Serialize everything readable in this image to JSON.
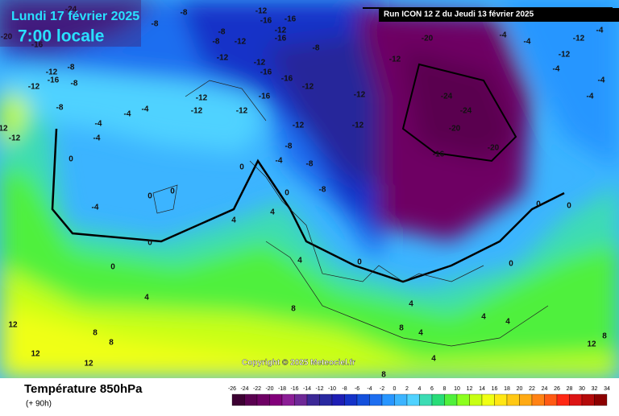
{
  "header": {
    "date": "Lundi 17 février 2025",
    "time": "7:00 locale",
    "run": "Run ICON 12 Z du Jeudi 13 février 2025"
  },
  "copyright": "Copyright © 2025 Meteociel.fr",
  "footer": {
    "title": "Température 850hPa",
    "lead": "(+ 90h)"
  },
  "legend": {
    "ticks": [
      -26,
      -24,
      -22,
      -20,
      -18,
      -16,
      -14,
      -12,
      -10,
      -8,
      -6,
      -4,
      -2,
      0,
      2,
      4,
      6,
      8,
      10,
      12,
      14,
      16,
      18,
      20,
      22,
      24,
      26,
      28,
      30,
      32,
      34
    ],
    "colors": [
      "#3c0032",
      "#5a0050",
      "#6e0064",
      "#82007a",
      "#8c1e96",
      "#6e2896",
      "#3c2896",
      "#2828a0",
      "#1e1eb4",
      "#1432c8",
      "#1450dc",
      "#1e6ef0",
      "#2896ff",
      "#3cb4ff",
      "#50d2ff",
      "#3cdcb4",
      "#28dc78",
      "#50f03c",
      "#8cff1e",
      "#c8ff14",
      "#f0ff14",
      "#ffe614",
      "#ffc814",
      "#ffaa14",
      "#ff8214",
      "#ff5a14",
      "#ff2814",
      "#dc1414",
      "#b40a0a",
      "#8c0000"
    ]
  },
  "map": {
    "labels": [
      "-24",
      "-8",
      "-8",
      "-12",
      "-16",
      "-16",
      "-12",
      "-16",
      "-8",
      "-8",
      "-12",
      "-12",
      "-12",
      "-16",
      "-16",
      "-8",
      "-8",
      "-12",
      "-16",
      "-8",
      "-12",
      "-20",
      "-16",
      "-8",
      "-4",
      "-4",
      "-4",
      "-12",
      "-12",
      "-12",
      "-16",
      "-12",
      "-12",
      "-12",
      "-12",
      "-8",
      "-8",
      "-4",
      "-8",
      "-12",
      "-20",
      "-24",
      "-24",
      "-20",
      "-16",
      "-20",
      "-4",
      "-4",
      "-12",
      "-12",
      "-4",
      "-4",
      "-4",
      "-4",
      "-12",
      "12",
      "-4",
      "0",
      "-4",
      "0",
      "0",
      "0",
      "4",
      "0",
      "0",
      "0",
      "4",
      "4",
      "0",
      "0",
      "0",
      "0",
      "4",
      "8",
      "4",
      "4",
      "4",
      "8",
      "4",
      "4",
      "12",
      "12",
      "12",
      "8",
      "8",
      "8",
      "12",
      "8"
    ]
  }
}
